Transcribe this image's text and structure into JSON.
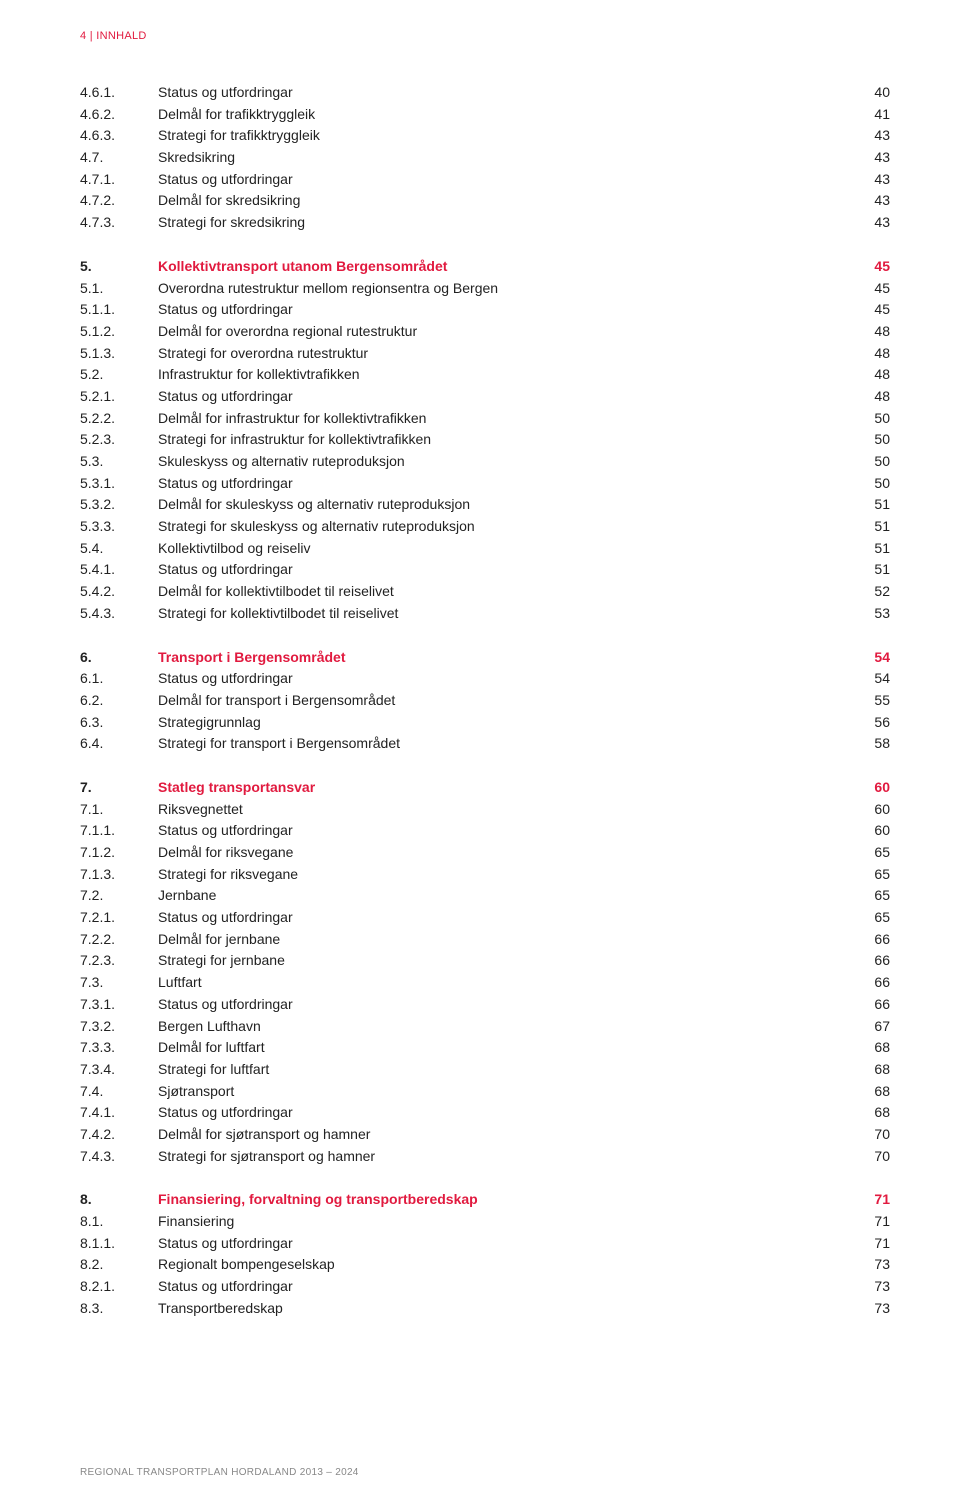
{
  "header": "4 | INNHALD",
  "footer": "REGIONAL TRANSPORTPLAN HORDALAND 2013 – 2024",
  "colors": {
    "accent": "#e11a3f",
    "text": "#222222"
  },
  "rows": [
    {
      "n": "4.6.1.",
      "t": "Status og utfordringar",
      "p": "40"
    },
    {
      "n": "4.6.2.",
      "t": "Delmål for trafikktryggleik",
      "p": "41"
    },
    {
      "n": "4.6.3.",
      "t": "Strategi for trafikktryggleik",
      "p": "43"
    },
    {
      "n": "4.7.",
      "t": "Skredsikring",
      "p": "43"
    },
    {
      "n": "4.7.1.",
      "t": "Status og utfordringar",
      "p": "43"
    },
    {
      "n": "4.7.2.",
      "t": "Delmål for skredsikring",
      "p": "43"
    },
    {
      "n": "4.7.3.",
      "t": "Strategi for skredsikring",
      "p": "43"
    },
    {
      "gap": true
    },
    {
      "n": "5.",
      "t": "Kollektivtransport utanom Bergensområdet",
      "p": "45",
      "bold": true,
      "red": true
    },
    {
      "n": "5.1.",
      "t": "Overordna rutestruktur mellom regionsentra og Bergen",
      "p": "45"
    },
    {
      "n": "5.1.1.",
      "t": "Status og utfordringar",
      "p": "45"
    },
    {
      "n": "5.1.2.",
      "t": "Delmål for overordna regional rutestruktur",
      "p": "48"
    },
    {
      "n": "5.1.3.",
      "t": "Strategi for overordna rutestruktur",
      "p": "48"
    },
    {
      "n": "5.2.",
      "t": "Infrastruktur for kollektivtrafikken",
      "p": "48"
    },
    {
      "n": "5.2.1.",
      "t": "Status og utfordringar",
      "p": "48"
    },
    {
      "n": "5.2.2.",
      "t": "Delmål for infrastruktur for kollektivtrafikken",
      "p": "50"
    },
    {
      "n": "5.2.3.",
      "t": "Strategi for infrastruktur for kollektivtrafikken",
      "p": "50"
    },
    {
      "n": "5.3.",
      "t": "Skuleskyss og alternativ ruteproduksjon",
      "p": "50"
    },
    {
      "n": "5.3.1.",
      "t": "Status og utfordringar",
      "p": "50"
    },
    {
      "n": "5.3.2.",
      "t": "Delmål for skuleskyss og alternativ ruteproduksjon",
      "p": "51"
    },
    {
      "n": "5.3.3.",
      "t": "Strategi for skuleskyss og alternativ ruteproduksjon",
      "p": "51"
    },
    {
      "n": "5.4.",
      "t": "Kollektivtilbod og reiseliv",
      "p": "51"
    },
    {
      "n": "5.4.1.",
      "t": "Status og utfordringar",
      "p": "51"
    },
    {
      "n": "5.4.2.",
      "t": "Delmål for kollektivtilbodet til reiselivet",
      "p": "52"
    },
    {
      "n": "5.4.3.",
      "t": "Strategi for kollektivtilbodet til reiselivet",
      "p": "53"
    },
    {
      "gap": true
    },
    {
      "n": "6.",
      "t": "Transport i Bergensområdet",
      "p": "54",
      "bold": true,
      "red": true
    },
    {
      "n": "6.1.",
      "t": "Status og utfordringar",
      "p": "54"
    },
    {
      "n": "6.2.",
      "t": "Delmål for transport i Bergensområdet",
      "p": "55"
    },
    {
      "n": "6.3.",
      "t": "Strategigrunnlag",
      "p": "56"
    },
    {
      "n": "6.4.",
      "t": "Strategi for transport i Bergensområdet",
      "p": "58"
    },
    {
      "gap": true
    },
    {
      "n": "7.",
      "t": "Statleg transportansvar",
      "p": "60",
      "bold": true,
      "red": true
    },
    {
      "n": "7.1.",
      "t": "Riksvegnettet",
      "p": "60"
    },
    {
      "n": "7.1.1.",
      "t": "Status og utfordringar",
      "p": "60"
    },
    {
      "n": "7.1.2.",
      "t": "Delmål for riksvegane",
      "p": "65"
    },
    {
      "n": "7.1.3.",
      "t": "Strategi for riksvegane",
      "p": "65"
    },
    {
      "n": "7.2.",
      "t": "Jernbane",
      "p": "65"
    },
    {
      "n": "7.2.1.",
      "t": "Status og utfordringar",
      "p": "65"
    },
    {
      "n": "7.2.2.",
      "t": "Delmål for jernbane",
      "p": "66"
    },
    {
      "n": "7.2.3.",
      "t": "Strategi for jernbane",
      "p": "66"
    },
    {
      "n": "7.3.",
      "t": "Luftfart",
      "p": "66"
    },
    {
      "n": "7.3.1.",
      "t": "Status og utfordringar",
      "p": "66"
    },
    {
      "n": "7.3.2.",
      "t": "Bergen Lufthavn",
      "p": "67"
    },
    {
      "n": "7.3.3.",
      "t": "Delmål for luftfart",
      "p": "68"
    },
    {
      "n": "7.3.4.",
      "t": "Strategi for luftfart",
      "p": "68"
    },
    {
      "n": "7.4.",
      "t": "Sjøtransport",
      "p": "68"
    },
    {
      "n": "7.4.1.",
      "t": "Status og utfordringar",
      "p": "68"
    },
    {
      "n": "7.4.2.",
      "t": "Delmål for sjøtransport og hamner",
      "p": "70"
    },
    {
      "n": "7.4.3.",
      "t": "Strategi for sjøtransport og hamner",
      "p": "70"
    },
    {
      "gap": true
    },
    {
      "n": "8.",
      "t": "Finansiering, forvaltning og transportberedskap",
      "p": "71",
      "bold": true,
      "red": true
    },
    {
      "n": "8.1.",
      "t": "Finansiering",
      "p": "71"
    },
    {
      "n": "8.1.1.",
      "t": "Status og utfordringar",
      "p": "71"
    },
    {
      "n": "8.2.",
      "t": "Regionalt bompengeselskap",
      "p": "73"
    },
    {
      "n": "8.2.1.",
      "t": "Status og utfordringar",
      "p": "73"
    },
    {
      "n": "8.3.",
      "t": "Transportberedskap",
      "p": "73"
    }
  ]
}
